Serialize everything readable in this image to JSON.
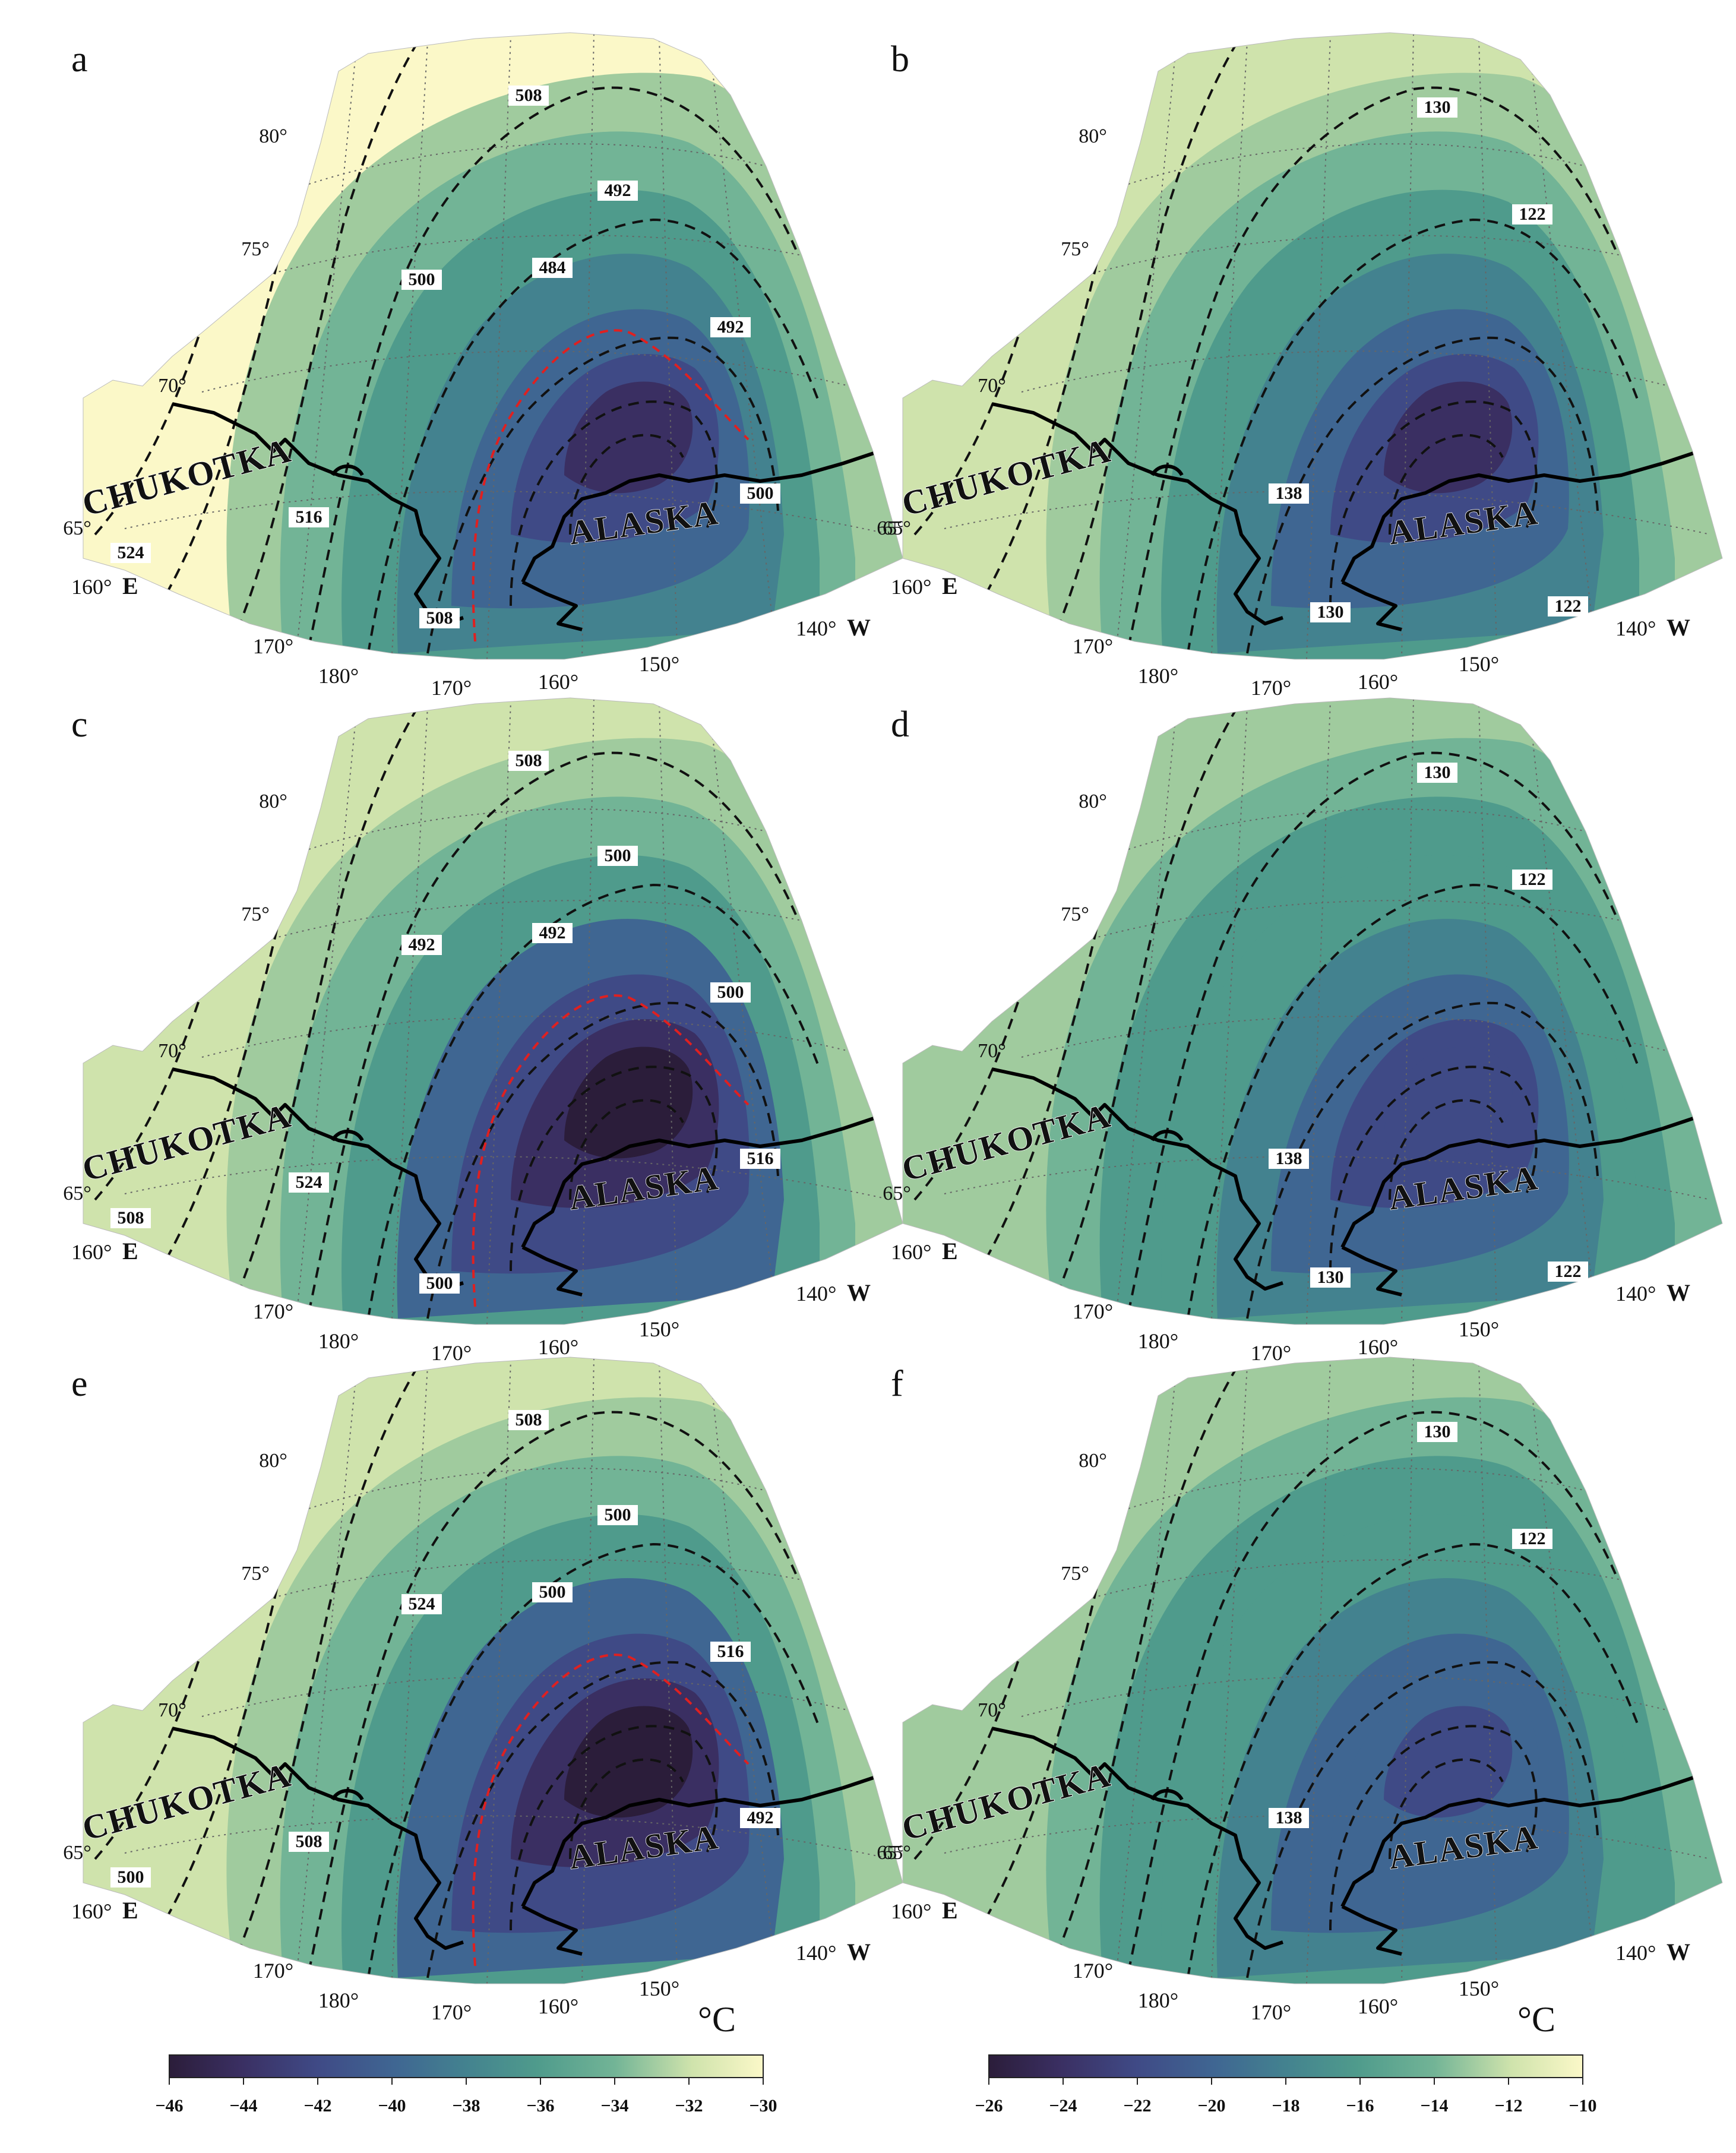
{
  "colormap": [
    "#2b1d3a",
    "#3a2f62",
    "#3f4a86",
    "#3f6692",
    "#43828f",
    "#4f9b8c",
    "#72b496",
    "#a0cb9e",
    "#cfe3ac",
    "#fbf8c8"
  ],
  "contour_line_color": "#111111",
  "highlight_contour_color": "#e02020",
  "land_outline_color": "#000000",
  "panels": [
    {
      "letter": "a",
      "region_left": "CHUKOTKA",
      "region_right": "ALASKA",
      "lat_labels": [
        "80°",
        "75°",
        "70°",
        "65°",
        "65°"
      ],
      "lon_labels": [
        "170°",
        "180°",
        "170°",
        "160°",
        "150°"
      ],
      "left_corner": {
        "value": "160°",
        "dir": "E"
      },
      "right_corner": {
        "value": "140°",
        "dir": "W"
      },
      "contour_labels": [
        "508",
        "492",
        "484",
        "500",
        "492",
        "500",
        "516",
        "524",
        "508"
      ]
    },
    {
      "letter": "b",
      "region_left": "CHUKOTKA",
      "region_right": "ALASKA",
      "lat_labels": [
        "80°",
        "75°",
        "70°",
        "65°"
      ],
      "lon_labels": [
        "170°",
        "180°",
        "170°",
        "160°",
        "150°"
      ],
      "left_corner": {
        "value": "160°",
        "dir": "E"
      },
      "right_corner": {
        "value": "140°",
        "dir": "W"
      },
      "contour_labels": [
        "130",
        "122",
        "138",
        "130",
        "122"
      ]
    },
    {
      "letter": "c",
      "region_left": "CHUKOTKA",
      "region_right": "ALASKA",
      "lat_labels": [
        "80°",
        "75°",
        "70°",
        "65°"
      ],
      "lon_labels": [
        "170°",
        "180°",
        "170°",
        "160°",
        "150°"
      ],
      "left_corner": {
        "value": "160°",
        "dir": "E"
      },
      "right_corner": {
        "value": "140°",
        "dir": "W"
      },
      "contour_labels": [
        "508",
        "500",
        "492",
        "492",
        "500",
        "516",
        "524",
        "508",
        "500"
      ]
    },
    {
      "letter": "d",
      "region_left": "CHUKOTKA",
      "region_right": "ALASKA",
      "lat_labels": [
        "80°",
        "75°",
        "70°",
        "65°"
      ],
      "lon_labels": [
        "170°",
        "180°",
        "170°",
        "160°",
        "150°"
      ],
      "left_corner": {
        "value": "160°",
        "dir": "E"
      },
      "right_corner": {
        "value": "140°",
        "dir": "W"
      },
      "contour_labels": [
        "130",
        "122",
        "138",
        "130",
        "122"
      ]
    },
    {
      "letter": "e",
      "region_left": "CHUKOTKA",
      "region_right": "ALASKA",
      "lat_labels": [
        "80°",
        "75°",
        "70°",
        "65°",
        "65°"
      ],
      "lon_labels": [
        "170°",
        "180°",
        "170°",
        "160°",
        "150°"
      ],
      "left_corner": {
        "value": "160°",
        "dir": "E"
      },
      "right_corner": {
        "value": "140°",
        "dir": "W"
      },
      "contour_labels": [
        "508",
        "500",
        "500",
        "524",
        "516",
        "492",
        "508",
        "500"
      ]
    },
    {
      "letter": "f",
      "region_left": "CHUKOTKA",
      "region_right": "ALASKA",
      "lat_labels": [
        "80°",
        "75°",
        "70°",
        "65°"
      ],
      "lon_labels": [
        "170°",
        "180°",
        "170°",
        "160°",
        "150°"
      ],
      "left_corner": {
        "value": "160°",
        "dir": "E"
      },
      "right_corner": {
        "value": "140°",
        "dir": "W"
      },
      "contour_labels": [
        "130",
        "122",
        "138"
      ]
    }
  ],
  "colorbars": [
    {
      "unit": "°C",
      "min": -46,
      "max": -30,
      "ticks": [
        "−46",
        "−44",
        "−42",
        "−40",
        "−38",
        "−36",
        "−34",
        "−32",
        "−30"
      ]
    },
    {
      "unit": "°C",
      "min": -26,
      "max": -10,
      "ticks": [
        "−26",
        "−24",
        "−22",
        "−20",
        "−18",
        "−16",
        "−14",
        "−12",
        "−10"
      ]
    }
  ]
}
